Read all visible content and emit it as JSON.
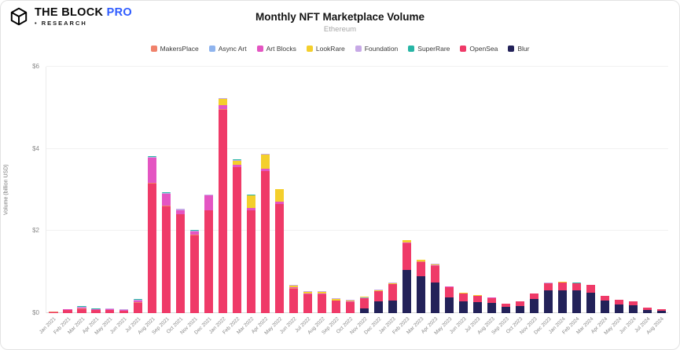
{
  "header": {
    "brand_the_block": "THE BLOCK",
    "brand_pro": "PRO",
    "brand_pro_color": "#2E5BFF",
    "research": "• RESEARCH"
  },
  "chart_data": {
    "type": "bar",
    "stacked": true,
    "title": "Monthly NFT Marketplace Volume",
    "subtitle": "Ethereum",
    "ylabel": "Volume (billion USD)",
    "ylim": [
      0,
      6
    ],
    "ytick_labels": [
      "$0",
      "$2",
      "$4",
      "$6"
    ],
    "grid": true,
    "legend_position": "top",
    "categories": [
      "Jan 2021",
      "Feb 2021",
      "Mar 2021",
      "Apr 2021",
      "May 2021",
      "Jun 2021",
      "Jul 2021",
      "Aug 2021",
      "Sep 2021",
      "Oct 2021",
      "Nov 2021",
      "Dec 2021",
      "Jan 2022",
      "Feb 2022",
      "Mar 2022",
      "Apr 2022",
      "May 2022",
      "Jun 2022",
      "Jul 2022",
      "Aug 2022",
      "Sep 2022",
      "Oct 2022",
      "Nov 2022",
      "Dec 2022",
      "Jan 2023",
      "Feb 2023",
      "Mar 2023",
      "Apr 2023",
      "May 2023",
      "Jun 2023",
      "Jul 2023",
      "Aug 2023",
      "Sep 2023",
      "Oct 2023",
      "Nov 2023",
      "Dec 2023",
      "Jan 2024",
      "Feb 2024",
      "Mar 2024",
      "Apr 2024",
      "May 2024",
      "Jun 2024",
      "Jul 2024",
      "Aug 2024"
    ],
    "series": [
      {
        "name": "MakersPlace",
        "color": "#F0826B",
        "values": [
          0.01,
          0.01,
          0.02,
          0.01,
          0.01,
          0.01,
          0.01,
          0.02,
          0.01,
          0.01,
          0.01,
          0.01,
          0.01,
          0.01,
          0.01,
          0.01,
          0.01,
          0.005,
          0.005,
          0.005,
          0.003,
          0.003,
          0.003,
          0.003,
          0.003,
          0.003,
          0.003,
          0.003,
          0.002,
          0.002,
          0.002,
          0.002,
          0.001,
          0.001,
          0.001,
          0.001,
          0.001,
          0.001,
          0.001,
          0.001,
          0.001,
          0.001,
          0.001,
          0.001
        ]
      },
      {
        "name": "Async Art",
        "color": "#8FB4EE",
        "values": [
          0.003,
          0.005,
          0.005,
          0.005,
          0.005,
          0.003,
          0.003,
          0.005,
          0.003,
          0.003,
          0.003,
          0.003,
          0.003,
          0.002,
          0.002,
          0.002,
          0.002,
          0.001,
          0.001,
          0.001,
          0.001,
          0.001,
          0.001,
          0.001,
          0.001,
          0.001,
          0.001,
          0.001,
          0.001,
          0.001,
          0.001,
          0.001,
          0,
          0,
          0,
          0,
          0,
          0,
          0,
          0,
          0,
          0,
          0,
          0
        ]
      },
      {
        "name": "Art Blocks",
        "color": "#E455C2",
        "values": [
          0,
          0.005,
          0.01,
          0.005,
          0.01,
          0.02,
          0.05,
          0.6,
          0.3,
          0.1,
          0.08,
          0.35,
          0.1,
          0.05,
          0.05,
          0.05,
          0.05,
          0.02,
          0.02,
          0.02,
          0.01,
          0.01,
          0.01,
          0.01,
          0.01,
          0.02,
          0.01,
          0.01,
          0.01,
          0.005,
          0.005,
          0.005,
          0.003,
          0.003,
          0.003,
          0.003,
          0.003,
          0.003,
          0.003,
          0.002,
          0.002,
          0.002,
          0.001,
          0.001
        ]
      },
      {
        "name": "LookRare",
        "color": "#F4CF2C",
        "values": [
          0,
          0,
          0,
          0,
          0,
          0,
          0,
          0,
          0,
          0,
          0,
          0,
          0.15,
          0.1,
          0.3,
          0.35,
          0.3,
          0.05,
          0.05,
          0.05,
          0.04,
          0.03,
          0.02,
          0.02,
          0.02,
          0.05,
          0.03,
          0.03,
          0.01,
          0.005,
          0.005,
          0.003,
          0.002,
          0.002,
          0.002,
          0.002,
          0.002,
          0.001,
          0.001,
          0.001,
          0,
          0,
          0,
          0
        ]
      },
      {
        "name": "Foundation",
        "color": "#C7A9E6",
        "values": [
          0,
          0.005,
          0.01,
          0.015,
          0.02,
          0.01,
          0.015,
          0.03,
          0.02,
          0.02,
          0.02,
          0.02,
          0.02,
          0.015,
          0.01,
          0.01,
          0.01,
          0.005,
          0.005,
          0.005,
          0.003,
          0.003,
          0.003,
          0.003,
          0.003,
          0.003,
          0.002,
          0.002,
          0.002,
          0.001,
          0.001,
          0.001,
          0.001,
          0.001,
          0.001,
          0.001,
          0.001,
          0.001,
          0.001,
          0.001,
          0.001,
          0.001,
          0,
          0
        ]
      },
      {
        "name": "SuperRare",
        "color": "#27B5A5",
        "values": [
          0.005,
          0.01,
          0.02,
          0.015,
          0.01,
          0.01,
          0.01,
          0.02,
          0.015,
          0.01,
          0.01,
          0.01,
          0.01,
          0.01,
          0.008,
          0.008,
          0.008,
          0.005,
          0.004,
          0.004,
          0.003,
          0.003,
          0.003,
          0.003,
          0.003,
          0.003,
          0.003,
          0.003,
          0.002,
          0.002,
          0.002,
          0.002,
          0.001,
          0.001,
          0.001,
          0.002,
          0.002,
          0.002,
          0.002,
          0.001,
          0.001,
          0.001,
          0.001,
          0.001
        ]
      },
      {
        "name": "OpenSea",
        "color": "#EF3A68",
        "values": [
          0.02,
          0.07,
          0.1,
          0.07,
          0.07,
          0.05,
          0.25,
          3.15,
          2.6,
          2.4,
          1.9,
          2.5,
          4.95,
          3.55,
          2.5,
          3.45,
          2.65,
          0.6,
          0.45,
          0.45,
          0.3,
          0.27,
          0.25,
          0.25,
          0.4,
          0.65,
          0.35,
          0.4,
          0.25,
          0.2,
          0.15,
          0.12,
          0.08,
          0.1,
          0.12,
          0.18,
          0.2,
          0.18,
          0.18,
          0.12,
          0.1,
          0.08,
          0.05,
          0.04
        ]
      },
      {
        "name": "Blur",
        "color": "#232259",
        "values": [
          0,
          0,
          0,
          0,
          0,
          0,
          0,
          0,
          0,
          0,
          0,
          0,
          0,
          0,
          0,
          0,
          0,
          0,
          0,
          0,
          0,
          0,
          0.12,
          0.28,
          0.3,
          1.05,
          0.9,
          0.75,
          0.38,
          0.28,
          0.27,
          0.25,
          0.15,
          0.18,
          0.35,
          0.55,
          0.55,
          0.55,
          0.5,
          0.3,
          0.22,
          0.2,
          0.08,
          0.05
        ]
      }
    ],
    "stack_order": [
      "Blur",
      "OpenSea",
      "MakersPlace",
      "Async Art",
      "Art Blocks",
      "LookRare",
      "Foundation",
      "SuperRare"
    ]
  }
}
